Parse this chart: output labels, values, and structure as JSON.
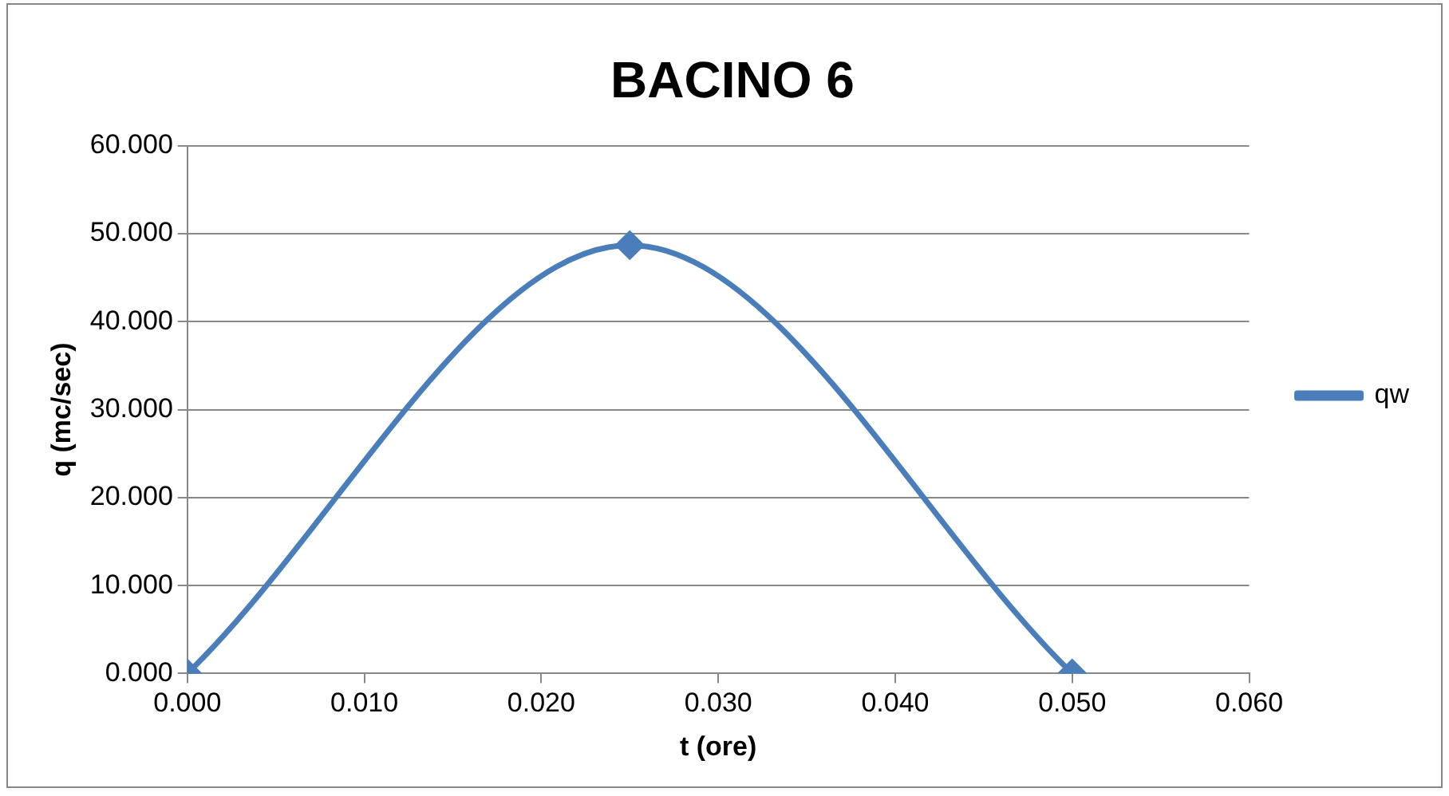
{
  "chart_data": {
    "type": "line",
    "title": "BACINO 6",
    "xlabel": "t (ore)",
    "ylabel": "q (mc/sec)",
    "x": [
      0,
      0.025,
      0.05
    ],
    "series": [
      {
        "name": "qw",
        "color": "#4a7ebb",
        "values": [
          0,
          48.7,
          0
        ]
      }
    ],
    "xlim": [
      0,
      0.06
    ],
    "xticks": [
      {
        "value": 0,
        "label": "0.000"
      },
      {
        "value": 0.01,
        "label": "0.010"
      },
      {
        "value": 0.02,
        "label": "0.020"
      },
      {
        "value": 0.03,
        "label": "0.030"
      },
      {
        "value": 0.04,
        "label": "0.040"
      },
      {
        "value": 0.05,
        "label": "0.050"
      },
      {
        "value": 0.06,
        "label": "0.060"
      }
    ],
    "ylim": [
      0,
      60
    ],
    "yticks": [
      {
        "value": 0,
        "label": "0.000"
      },
      {
        "value": 10,
        "label": "10.000"
      },
      {
        "value": 20,
        "label": "20.000"
      },
      {
        "value": 30,
        "label": "30.000"
      },
      {
        "value": 40,
        "label": "40.000"
      },
      {
        "value": 50,
        "label": "50.000"
      },
      {
        "value": 60,
        "label": "60.000"
      }
    ],
    "grid": "y",
    "legend": "right",
    "marker": "diamond",
    "line_style": "solid"
  }
}
